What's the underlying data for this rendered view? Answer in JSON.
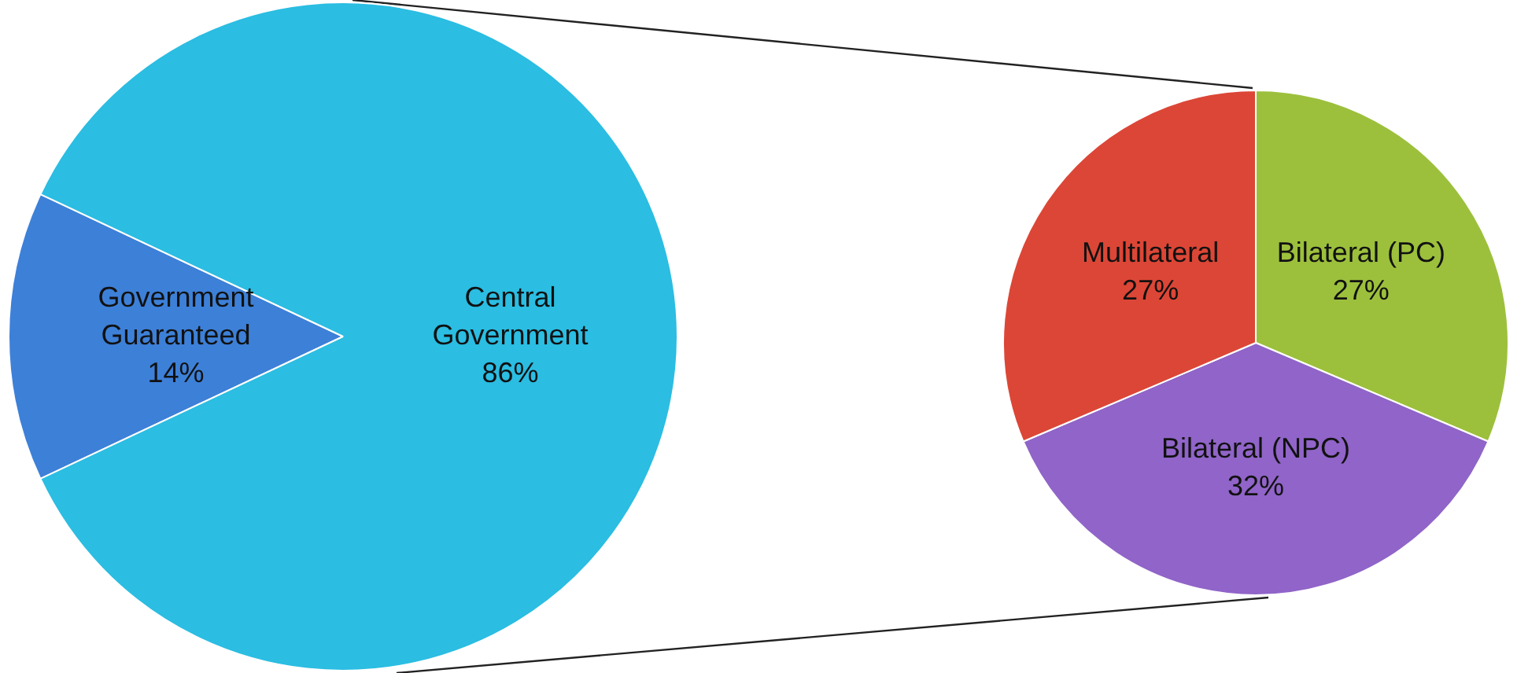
{
  "chart_data": [
    {
      "type": "pie",
      "categories": [
        "Government Guaranteed",
        "Central Government"
      ],
      "values": [
        14,
        86
      ],
      "value_labels": [
        "14%",
        "86%"
      ],
      "colors": [
        "#3d80d8",
        "#2bbde2"
      ],
      "legend": false
    },
    {
      "type": "pie",
      "categories": [
        "Bilateral (PC)",
        "Bilateral (NPC)",
        "Multilateral"
      ],
      "values": [
        27,
        32,
        27
      ],
      "value_labels": [
        "27%",
        "32%",
        "27%"
      ],
      "colors": [
        "#9cc03c",
        "#9064c8",
        "#dc4636"
      ],
      "legend": false
    }
  ]
}
